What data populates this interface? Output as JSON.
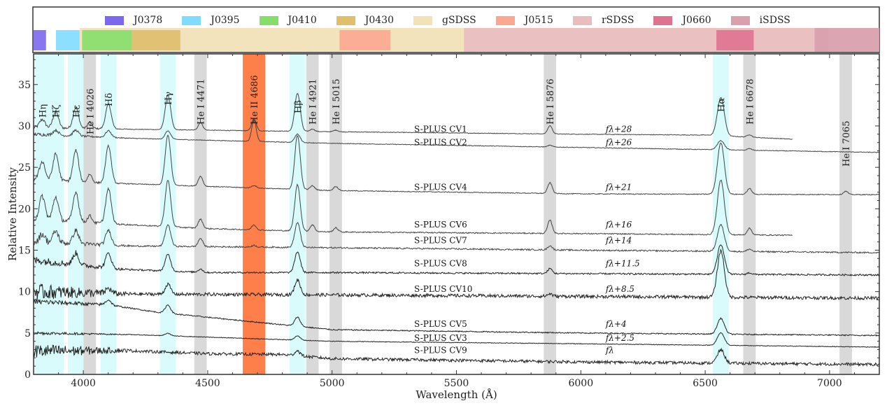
{
  "chart_data": {
    "type": "line",
    "xlabel": "Wavelength (Å)",
    "ylabel": "Relative Intensity",
    "xlim": [
      3800,
      7200
    ],
    "ylim": [
      0,
      38.7
    ],
    "xticks": [
      4000,
      4500,
      5000,
      5500,
      6000,
      6500,
      7000
    ],
    "yticks": [
      0,
      5,
      10,
      15,
      20,
      25,
      30,
      35
    ],
    "filters": [
      {
        "name": "J0378",
        "color": "#7b68ee",
        "range": [
          3800,
          3850
        ],
        "broad": false
      },
      {
        "name": "J0395",
        "color": "#80dcff",
        "range": [
          3890,
          3985
        ],
        "broad": false
      },
      {
        "name": "J0410",
        "color": "#86dd6a",
        "range": [
          3995,
          4195
        ],
        "broad": false
      },
      {
        "name": "J0430",
        "color": "#dfbe6c",
        "range": [
          4195,
          4390
        ],
        "broad": false
      },
      {
        "name": "gSDSS",
        "color": "#f2e2b8",
        "range": [
          3985,
          5530
        ],
        "broad": true
      },
      {
        "name": "J0515",
        "color": "#fca790",
        "range": [
          5030,
          5235
        ],
        "broad": false
      },
      {
        "name": "rSDSS",
        "color": "#e9bdbd",
        "range": [
          5530,
          6995
        ],
        "broad": true
      },
      {
        "name": "J0660",
        "color": "#df7290",
        "range": [
          6545,
          6695
        ],
        "broad": false
      },
      {
        "name": "iSDSS",
        "color": "#d9a0ae",
        "range": [
          6940,
          7200
        ],
        "broad": true
      }
    ],
    "lines": [
      {
        "label": "Hη",
        "wavelength": 3835,
        "kind": "H"
      },
      {
        "label": "Hζ",
        "wavelength": 3889,
        "kind": "H"
      },
      {
        "label": "Hε",
        "wavelength": 3970,
        "kind": "H"
      },
      {
        "label": "He I 4026",
        "wavelength": 4026,
        "kind": "HeI"
      },
      {
        "label": "Hδ",
        "wavelength": 4101,
        "kind": "H"
      },
      {
        "label": "Hγ",
        "wavelength": 4340,
        "kind": "H"
      },
      {
        "label": "He I 4471",
        "wavelength": 4471,
        "kind": "HeI"
      },
      {
        "label": "He II 4686",
        "wavelength": 4686,
        "kind": "HeII"
      },
      {
        "label": "Hβ",
        "wavelength": 4861,
        "kind": "H"
      },
      {
        "label": "He I 4921",
        "wavelength": 4921,
        "kind": "HeI"
      },
      {
        "label": "He I 5015",
        "wavelength": 5015,
        "kind": "HeI"
      },
      {
        "label": "He I 5876",
        "wavelength": 5876,
        "kind": "HeI"
      },
      {
        "label": "Hα",
        "wavelength": 6563,
        "kind": "H"
      },
      {
        "label": "He I 6678",
        "wavelength": 6678,
        "kind": "HeI"
      },
      {
        "label": "He I 7065",
        "wavelength": 7065,
        "kind": "HeI"
      }
    ],
    "band_colors": {
      "H": "#d9fbfb",
      "HeI": "#d9d9d9",
      "HeII": "#ff7f4a"
    },
    "series": [
      {
        "name": "S-PLUS CV1",
        "offset_label": "fλ+28",
        "offset": 28,
        "label_y": 29.6,
        "lmax": 6850,
        "noise": 0.04,
        "continuum": [
          [
            3800,
            29.8
          ],
          [
            4200,
            29.6
          ],
          [
            5000,
            29.3
          ],
          [
            6000,
            29.0
          ],
          [
            6500,
            28.9
          ],
          [
            6850,
            28.4
          ]
        ],
        "amps": {
          "Hη": 1.0,
          "Hζ": 2.0,
          "Hε": 2.5,
          "He I 4026": 0.8,
          "Hδ": 3.0,
          "Hγ": 4.2,
          "He I 4471": 0.9,
          "He II 4686": 1.5,
          "Hβ": 4.6,
          "He I 4921": 0.3,
          "He I 5015": 0.2,
          "He I 5876": 1.0,
          "Hα": 4.6,
          "He I 6678": 0.3
        }
      },
      {
        "name": "S-PLUS CV2",
        "offset_label": "fλ+26",
        "offset": 26,
        "label_y": 28.0,
        "lmax": 7200,
        "noise": 0.04,
        "continuum": [
          [
            3800,
            29.0
          ],
          [
            4200,
            28.5
          ],
          [
            5000,
            27.9
          ],
          [
            6000,
            27.4
          ],
          [
            7200,
            26.8
          ]
        ],
        "amps": {
          "Hζ": 0.6,
          "Hε": 0.7,
          "Hδ": 0.8,
          "Hγ": 1.0,
          "He II 4686": 2.6,
          "Hβ": 1.0,
          "He I 5876": 0.2,
          "Hα": 1.1,
          "He I 6678": 0.2
        }
      },
      {
        "name": "S-PLUS CV4",
        "offset_label": "fλ+21",
        "offset": 21,
        "label_y": 22.6,
        "lmax": 7200,
        "noise": 0.05,
        "continuum": [
          [
            3800,
            23.6
          ],
          [
            4000,
            23.2
          ],
          [
            4300,
            22.9
          ],
          [
            5000,
            22.2
          ],
          [
            6000,
            21.8
          ],
          [
            7200,
            21.7
          ]
        ],
        "amps": {
          "Hη": 2.2,
          "Hζ": 3.2,
          "Hε": 3.8,
          "He I 4026": 1.0,
          "Hδ": 4.5,
          "Hγ": 6.0,
          "He I 4471": 1.2,
          "He II 4686": 0.3,
          "Hβ": 6.5,
          "He I 4921": 0.5,
          "He I 5015": 0.5,
          "He I 5876": 1.3,
          "Hα": 6.2,
          "He I 6678": 0.7,
          "He I 7065": 0.4
        }
      },
      {
        "name": "S-PLUS CV6",
        "offset_label": "fλ+16",
        "offset": 16,
        "label_y": 18.1,
        "lmax": 6850,
        "noise": 0.07,
        "continuum": [
          [
            3800,
            18.8
          ],
          [
            4100,
            18.2
          ],
          [
            4500,
            17.6
          ],
          [
            5000,
            17.2
          ],
          [
            6000,
            17.0
          ],
          [
            6850,
            16.8
          ]
        ],
        "amps": {
          "Hη": 2.8,
          "Hζ": 2.8,
          "Hε": 3.6,
          "He I 4026": 0.8,
          "Hδ": 4.2,
          "Hγ": 5.6,
          "He I 4471": 1.1,
          "He II 4686": 0.6,
          "Hβ": 5.6,
          "He I 4921": 0.8,
          "He I 5015": 0.5,
          "He I 5876": 1.6,
          "Hα": 6.6,
          "He I 6678": 0.8
        }
      },
      {
        "name": "S-PLUS CV7",
        "offset_label": "fλ+14",
        "offset": 14,
        "label_y": 16.2,
        "lmax": 7200,
        "noise": 0.09,
        "continuum": [
          [
            3800,
            16.0
          ],
          [
            4200,
            15.5
          ],
          [
            5000,
            15.3
          ],
          [
            6000,
            15.0
          ],
          [
            7200,
            14.7
          ]
        ],
        "amps": {
          "Hη": 1.0,
          "Hζ": 1.4,
          "Hε": 1.6,
          "Hδ": 1.8,
          "Hγ": 2.6,
          "He I 4471": 1.0,
          "He II 4686": 0.2,
          "Hβ": 3.0,
          "He I 5876": 0.5,
          "Hα": 3.2,
          "He I 6678": 0.3
        }
      },
      {
        "name": "S-PLUS CV8",
        "offset_label": "fλ+11.5",
        "offset": 11.5,
        "label_y": 13.4,
        "lmax": 7200,
        "noise": 0.1,
        "continuum": [
          [
            3800,
            13.8
          ],
          [
            4150,
            12.7
          ],
          [
            4500,
            12.3
          ],
          [
            5000,
            12.3
          ],
          [
            7200,
            12.0
          ]
        ],
        "amps": {
          "Hε": 1.4,
          "Hδ": 1.8,
          "Hγ": 2.0,
          "He I 4471": 0.4,
          "Hβ": 2.5,
          "He I 5876": 0.6,
          "Hα": 3.6,
          "He I 6678": 0.2
        }
      },
      {
        "name": "S-PLUS CV10",
        "offset_label": "fλ+8.5",
        "offset": 8.5,
        "label_y": 10.3,
        "lmax": 7200,
        "noise": 0.2,
        "continuum": [
          [
            3800,
            10.0
          ],
          [
            4200,
            9.7
          ],
          [
            5000,
            9.6
          ],
          [
            7200,
            9.2
          ]
        ],
        "amps": {
          "Hδ": 0.6,
          "Hγ": 1.2,
          "Hβ": 1.8,
          "He I 5876": 0.3,
          "Hα": 5.6
        }
      },
      {
        "name": "S-PLUS CV5",
        "offset_label": "fλ+4",
        "offset": 4,
        "label_y": 6.1,
        "lmax": 7200,
        "noise": 0.07,
        "continuum": [
          [
            3800,
            8.8
          ],
          [
            4100,
            8.4
          ],
          [
            4300,
            7.5
          ],
          [
            4700,
            6.3
          ],
          [
            5000,
            5.4
          ],
          [
            6000,
            5.0
          ],
          [
            7200,
            4.7
          ]
        ],
        "amps": {
          "Hδ": 0.6,
          "Hγ": 1.0,
          "Hβ": 1.1,
          "Hα": 1.9
        }
      },
      {
        "name": "S-PLUS CV3",
        "offset_label": "fλ+2.5",
        "offset": 2.5,
        "label_y": 4.4,
        "lmax": 7200,
        "noise": 0.04,
        "continuum": [
          [
            3800,
            5.0
          ],
          [
            4200,
            4.8
          ],
          [
            5000,
            4.0
          ],
          [
            6000,
            3.7
          ],
          [
            7200,
            3.3
          ]
        ],
        "amps": {
          "Hγ": 0.3,
          "Hβ": 0.5,
          "Hα": 1.5
        }
      },
      {
        "name": "S-PLUS CV9",
        "offset_label": "fλ",
        "offset": 0,
        "label_y": 2.9,
        "lmax": 7200,
        "noise": 0.18,
        "continuum": [
          [
            3800,
            2.8
          ],
          [
            4150,
            2.9
          ],
          [
            4500,
            2.5
          ],
          [
            4800,
            2.4
          ],
          [
            5000,
            1.9
          ],
          [
            6000,
            1.5
          ],
          [
            7200,
            1.2
          ]
        ],
        "amps": {
          "Hβ": 0.6,
          "Hα": 1.6
        }
      }
    ]
  }
}
